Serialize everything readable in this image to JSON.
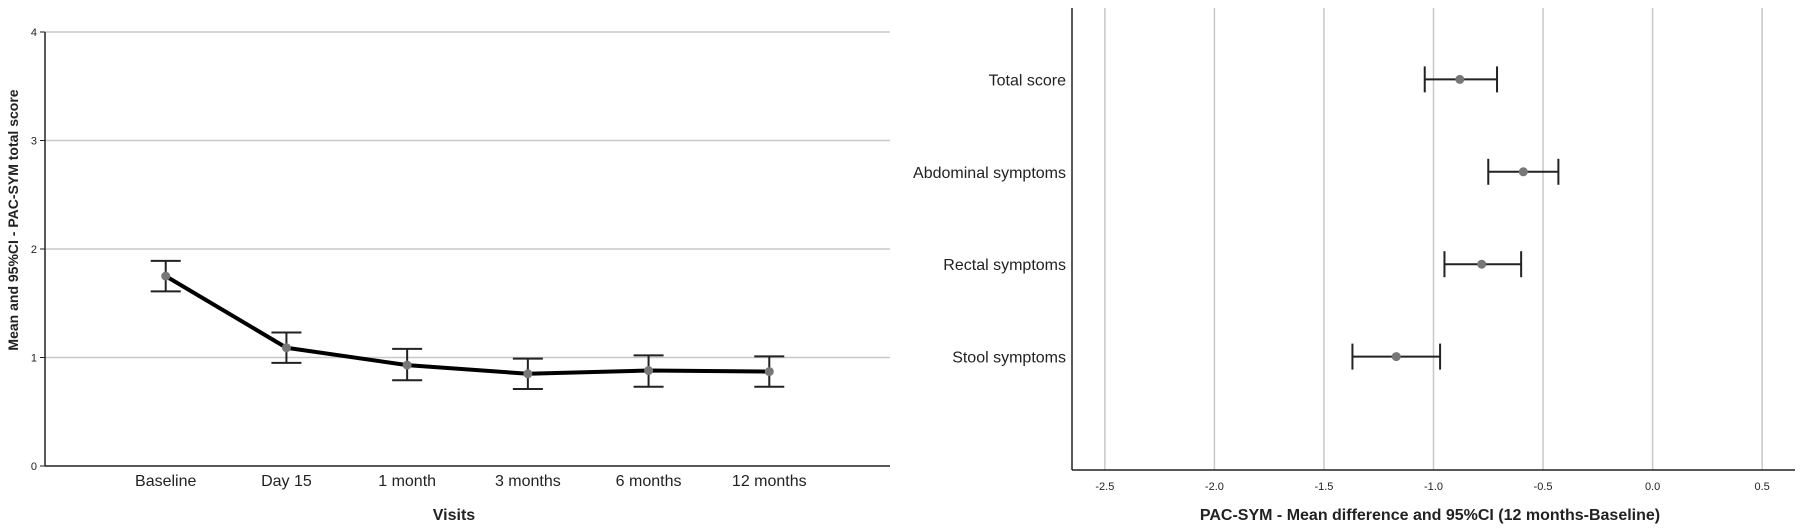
{
  "chart_data": [
    {
      "type": "line",
      "xlabel": "Visits",
      "ylabel": "Mean and 95%CI - PAC-SYM total score",
      "categories": [
        "Baseline",
        "Day 15",
        "1 month",
        "3 months",
        "6 months",
        "12 months"
      ],
      "series": [
        {
          "values": [
            1.75,
            1.09,
            0.93,
            0.85,
            0.88,
            0.87
          ],
          "ci_lower": [
            1.61,
            0.95,
            0.79,
            0.71,
            0.73,
            0.73
          ],
          "ci_upper": [
            1.89,
            1.23,
            1.08,
            0.99,
            1.02,
            1.01
          ]
        }
      ],
      "ylim": [
        0,
        4
      ],
      "yticks": [
        "0",
        "1",
        "2",
        "3",
        "4"
      ],
      "grid": "horizontal",
      "colors": {
        "line": "#000000",
        "marker": "#777777",
        "errorbar": "#222222",
        "grid": "#c8c8c8"
      }
    },
    {
      "type": "scatter",
      "xlabel": "PAC-SYM - Mean difference and 95%CI (12 months-Baseline)",
      "ylabel": "",
      "categories": [
        "Total score",
        "Abdominal symptoms",
        "Rectal symptoms",
        "Stool symptoms"
      ],
      "series": [
        {
          "values": [
            -0.88,
            -0.59,
            -0.78,
            -1.17
          ],
          "ci_lower": [
            -1.04,
            -0.75,
            -0.95,
            -1.37
          ],
          "ci_upper": [
            -0.71,
            -0.43,
            -0.6,
            -0.97
          ]
        }
      ],
      "xlim": [
        -2.65,
        0.65
      ],
      "xticks": [
        "-2.5",
        "-2.0",
        "-1.5",
        "-1.0",
        "-0.5",
        "0.0",
        "0.5"
      ],
      "grid": "vertical",
      "colors": {
        "marker": "#777777",
        "errorbar": "#222222",
        "grid": "#c8c8c8"
      }
    }
  ]
}
